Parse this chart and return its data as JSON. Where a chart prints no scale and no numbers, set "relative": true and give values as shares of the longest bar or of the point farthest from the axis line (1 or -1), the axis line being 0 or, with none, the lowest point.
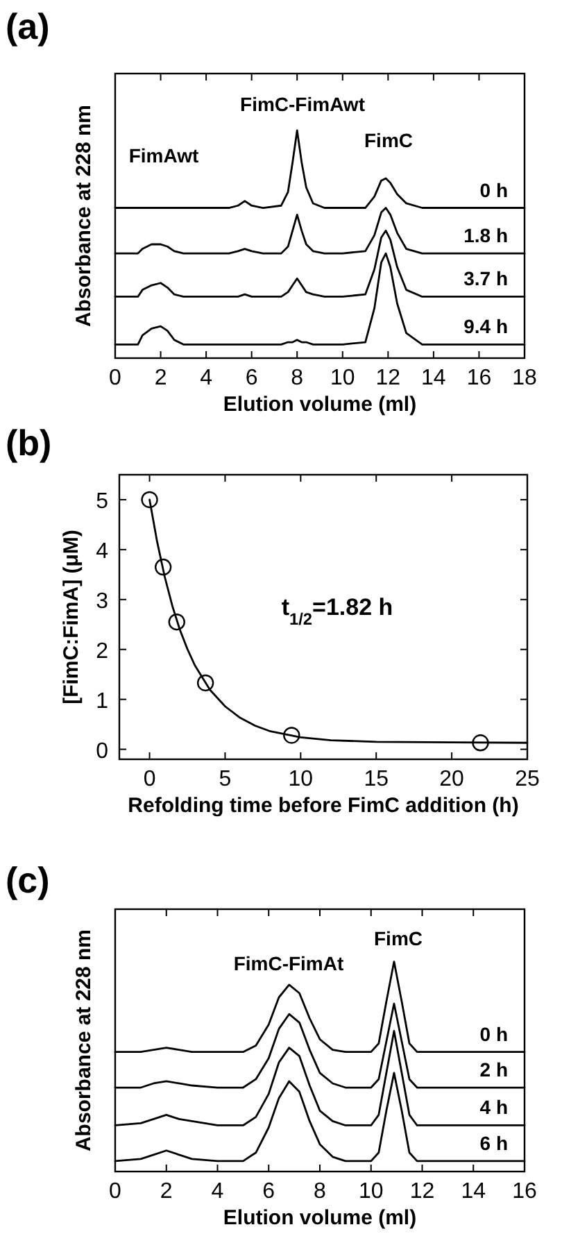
{
  "chart_data": [
    {
      "type": "line",
      "title": "(a)",
      "xlabel": "Elution volume (ml)",
      "ylabel": "Absorbance at 228 nm",
      "relative": true,
      "xlim": [
        0,
        18
      ],
      "xticks": [
        0,
        2,
        4,
        6,
        8,
        10,
        12,
        14,
        16,
        18
      ],
      "x": [
        0,
        0.8,
        1,
        1.2,
        1.6,
        2,
        2.3,
        2.6,
        3,
        5,
        5.4,
        5.7,
        6,
        6.5,
        7.3,
        7.6,
        7.8,
        8,
        8.2,
        8.4,
        8.7,
        9.2,
        10,
        11,
        11.4,
        11.7,
        11.9,
        12.1,
        12.4,
        12.8,
        13.5,
        15,
        18
      ],
      "series": [
        {
          "name": "0 h",
          "color": "#000000",
          "line_style": "solid",
          "values": [
            0.66,
            0.66,
            0.66,
            0.66,
            0.66,
            0.66,
            0.66,
            0.66,
            0.66,
            0.66,
            0.67,
            0.69,
            0.67,
            0.66,
            0.67,
            0.73,
            0.86,
            1.0,
            0.86,
            0.75,
            0.68,
            0.66,
            0.66,
            0.66,
            0.71,
            0.78,
            0.79,
            0.77,
            0.72,
            0.68,
            0.66,
            0.66,
            0.66
          ]
        },
        {
          "name": "1.8 h",
          "color": "#000000",
          "line_style": "solid",
          "values": [
            0.46,
            0.46,
            0.46,
            0.48,
            0.5,
            0.5,
            0.49,
            0.47,
            0.46,
            0.46,
            0.47,
            0.48,
            0.47,
            0.46,
            0.46,
            0.49,
            0.56,
            0.63,
            0.56,
            0.5,
            0.47,
            0.46,
            0.46,
            0.47,
            0.54,
            0.64,
            0.66,
            0.63,
            0.55,
            0.48,
            0.46,
            0.46,
            0.46
          ]
        },
        {
          "name": "3.7 h",
          "color": "#000000",
          "line_style": "solid",
          "values": [
            0.27,
            0.27,
            0.27,
            0.3,
            0.32,
            0.33,
            0.31,
            0.28,
            0.27,
            0.27,
            0.27,
            0.28,
            0.27,
            0.27,
            0.27,
            0.29,
            0.32,
            0.35,
            0.32,
            0.29,
            0.28,
            0.27,
            0.27,
            0.28,
            0.39,
            0.53,
            0.56,
            0.52,
            0.4,
            0.3,
            0.27,
            0.27,
            0.27
          ]
        },
        {
          "name": "9.4 h",
          "color": "#000000",
          "line_style": "solid",
          "values": [
            0.06,
            0.06,
            0.06,
            0.1,
            0.13,
            0.14,
            0.12,
            0.08,
            0.06,
            0.06,
            0.06,
            0.06,
            0.06,
            0.06,
            0.06,
            0.07,
            0.07,
            0.08,
            0.07,
            0.07,
            0.06,
            0.06,
            0.06,
            0.07,
            0.22,
            0.42,
            0.46,
            0.4,
            0.24,
            0.11,
            0.06,
            0.06,
            0.06
          ]
        }
      ],
      "annotations": [
        "FimAwt",
        "FimC-FimAwt",
        "FimC"
      ]
    },
    {
      "type": "scatter",
      "title": "(b)",
      "xlabel": "Refolding time before FimC addition (h)",
      "ylabel": "[FimC:FimA] (μM)",
      "xlim": [
        -2,
        25
      ],
      "xticks": [
        0,
        5,
        10,
        15,
        20,
        25
      ],
      "ylim": [
        -0.2,
        5.5
      ],
      "yticks": [
        0,
        1,
        2,
        3,
        4,
        5
      ],
      "series": [
        {
          "color": "#000000",
          "marker": "circle",
          "x": [
            0,
            0.9,
            1.8,
            3.7,
            9.4,
            21.9
          ],
          "values": [
            5.0,
            3.65,
            2.55,
            1.33,
            0.28,
            0.13
          ]
        },
        {
          "type": "line",
          "color": "#000000",
          "line_style": "solid",
          "x": [
            0,
            0.5,
            1,
            1.5,
            2,
            2.5,
            3,
            4,
            5,
            6,
            7,
            8,
            10,
            12,
            15,
            20,
            25
          ],
          "values": [
            5.0,
            4.16,
            3.46,
            2.88,
            2.4,
            2.01,
            1.68,
            1.19,
            0.86,
            0.63,
            0.47,
            0.36,
            0.24,
            0.18,
            0.15,
            0.14,
            0.13
          ]
        }
      ],
      "annotations": [
        "t$_{1/2}$=1.82 h"
      ]
    },
    {
      "type": "line",
      "title": "(c)",
      "xlabel": "Elution volume (ml)",
      "ylabel": "Absorbance at 228 nm",
      "relative": true,
      "xlim": [
        0,
        16
      ],
      "xticks": [
        0,
        2,
        4,
        6,
        8,
        10,
        12,
        14,
        16
      ],
      "x": [
        0,
        1,
        1.5,
        2,
        2.5,
        3,
        4,
        5,
        5.5,
        6,
        6.4,
        6.8,
        7.2,
        7.6,
        8,
        8.5,
        9,
        9.5,
        10,
        10.3,
        10.6,
        10.9,
        11.2,
        11.5,
        11.8,
        12.2,
        13,
        16
      ],
      "series": [
        {
          "name": "0 h",
          "color": "#000000",
          "line_style": "solid",
          "values": [
            0.57,
            0.57,
            0.58,
            0.59,
            0.58,
            0.57,
            0.57,
            0.57,
            0.6,
            0.7,
            0.83,
            0.89,
            0.85,
            0.73,
            0.63,
            0.58,
            0.57,
            0.57,
            0.57,
            0.61,
            0.81,
            1.0,
            0.81,
            0.61,
            0.57,
            0.57,
            0.57,
            0.57
          ]
        },
        {
          "name": "2 h",
          "color": "#000000",
          "line_style": "solid",
          "values": [
            0.4,
            0.4,
            0.42,
            0.43,
            0.42,
            0.41,
            0.4,
            0.4,
            0.44,
            0.54,
            0.68,
            0.75,
            0.71,
            0.58,
            0.47,
            0.42,
            0.4,
            0.4,
            0.4,
            0.44,
            0.62,
            0.8,
            0.62,
            0.44,
            0.4,
            0.4,
            0.4,
            0.4
          ]
        },
        {
          "name": "4 h",
          "color": "#000000",
          "line_style": "solid",
          "values": [
            0.22,
            0.23,
            0.25,
            0.27,
            0.25,
            0.24,
            0.22,
            0.22,
            0.26,
            0.37,
            0.52,
            0.59,
            0.55,
            0.41,
            0.29,
            0.24,
            0.22,
            0.22,
            0.22,
            0.27,
            0.47,
            0.67,
            0.47,
            0.27,
            0.22,
            0.22,
            0.22,
            0.22
          ]
        },
        {
          "name": "6 h",
          "color": "#000000",
          "line_style": "solid",
          "values": [
            0.05,
            0.06,
            0.08,
            0.1,
            0.08,
            0.06,
            0.05,
            0.05,
            0.09,
            0.21,
            0.35,
            0.43,
            0.38,
            0.24,
            0.13,
            0.07,
            0.05,
            0.05,
            0.05,
            0.09,
            0.29,
            0.47,
            0.29,
            0.09,
            0.05,
            0.05,
            0.05,
            0.05
          ]
        }
      ],
      "annotations": [
        "FimC-FimAt",
        "FimC"
      ]
    }
  ]
}
